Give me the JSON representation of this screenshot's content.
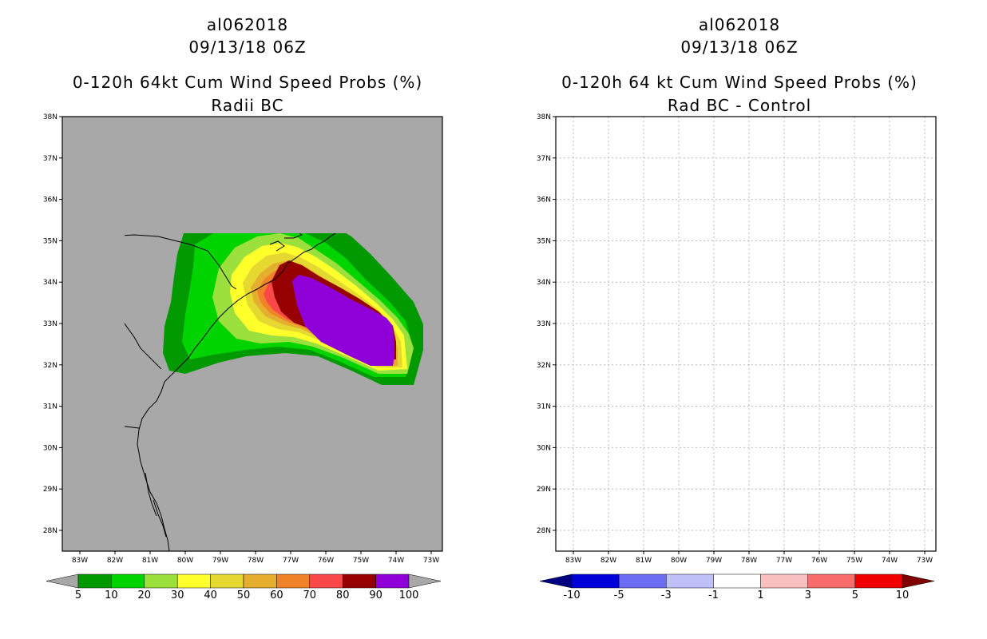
{
  "left_panel": {
    "storm_id": "al062018",
    "datetime": "09/13/18 06Z",
    "product": "0-120h 64kt Cum Wind Speed Probs (%)",
    "subtitle": "Radii BC",
    "background_color": "#a8a8a8",
    "colorbar": {
      "levels": [
        "5",
        "10",
        "20",
        "30",
        "40",
        "50",
        "60",
        "70",
        "80",
        "90",
        "100"
      ],
      "colors": [
        "#009a00",
        "#00d400",
        "#9be03c",
        "#ffff2c",
        "#e5d830",
        "#e5ae2e",
        "#f08228",
        "#f84848",
        "#960000",
        "#8f00d8"
      ],
      "under_color": "#a8a8a8",
      "over_color": "#a8a8a8"
    }
  },
  "right_panel": {
    "storm_id": "al062018",
    "datetime": "09/13/18 06Z",
    "product": "0-120h 64 kt Cum Wind Speed Probs (%)",
    "subtitle": "Rad BC - Control",
    "background_color": "#ffffff",
    "colorbar": {
      "levels": [
        "-10",
        "-5",
        "-3",
        "-1",
        "1",
        "3",
        "5",
        "10"
      ],
      "colors": [
        "#0000d8",
        "#6c6cf4",
        "#c0c0f8",
        "#ffffff",
        "#f8c0c0",
        "#f86c6c",
        "#f00000"
      ],
      "under_color": "#000080",
      "over_color": "#800000"
    }
  },
  "axes": {
    "lat_labels": [
      "38N",
      "37N",
      "36N",
      "35N",
      "34N",
      "33N",
      "32N",
      "31N",
      "30N",
      "29N",
      "28N"
    ],
    "lon_labels": [
      "83W",
      "82W",
      "81W",
      "80W",
      "79W",
      "78W",
      "77W",
      "76W",
      "75W",
      "74W",
      "73W"
    ]
  }
}
